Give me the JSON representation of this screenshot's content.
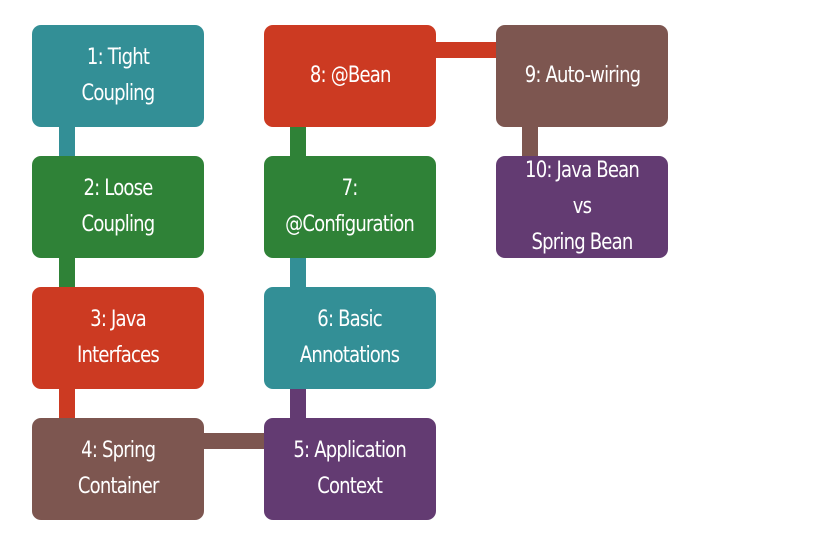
{
  "colors": {
    "teal": "#338f96",
    "green": "#2f8237",
    "red": "#cc3a22",
    "brown": "#7d5650",
    "purple": "#633b72"
  },
  "steps": [
    {
      "label": "1: Tight Coupling",
      "color": "#338f96"
    },
    {
      "label": "2: Loose Coupling",
      "color": "#2f8237"
    },
    {
      "label": "3: Java Interfaces",
      "color": "#cc3a22"
    },
    {
      "label": "4: Spring\nContainer",
      "color": "#7d5650"
    },
    {
      "label": "5: Application\nContext",
      "color": "#633b72"
    },
    {
      "label": "6: Basic\nAnnotations",
      "color": "#338f96"
    },
    {
      "label": "7:\n@Configuration",
      "color": "#2f8237"
    },
    {
      "label": "8: @Bean",
      "color": "#cc3a22"
    },
    {
      "label": "9: Auto-wiring",
      "color": "#7d5650"
    },
    {
      "label": "10: Java Bean vs\nSpring Bean",
      "color": "#633b72"
    }
  ],
  "connectors": [
    {
      "from": 1,
      "to": 2,
      "color": "#338f96"
    },
    {
      "from": 2,
      "to": 3,
      "color": "#2f8237"
    },
    {
      "from": 3,
      "to": 4,
      "color": "#cc3a22"
    },
    {
      "from": 4,
      "to": 5,
      "color": "#7d5650"
    },
    {
      "from": 5,
      "to": 6,
      "color": "#633b72"
    },
    {
      "from": 6,
      "to": 7,
      "color": "#338f96"
    },
    {
      "from": 7,
      "to": 8,
      "color": "#2f8237"
    },
    {
      "from": 8,
      "to": 9,
      "color": "#cc3a22"
    },
    {
      "from": 9,
      "to": 10,
      "color": "#7d5650"
    }
  ]
}
